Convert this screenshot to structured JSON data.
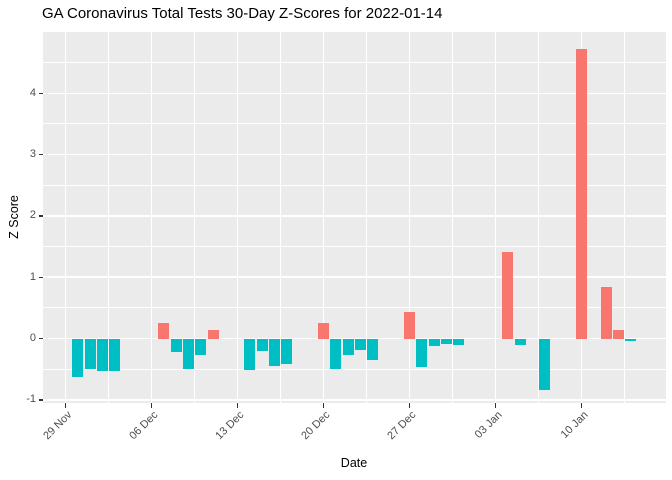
{
  "page": {
    "title": "GA Coronavirus Total Tests 30-Day Z-Scores for 2022-01-14"
  },
  "chart_data": {
    "type": "bar",
    "title": "GA Coronavirus Total Tests 30-Day Z-Scores for 2022-01-14",
    "xlabel": "Date",
    "ylabel": "Z Score",
    "x_start_date": "2021-11-29",
    "x_ticks": [
      {
        "date": "2021-11-29",
        "label": "29 Nov"
      },
      {
        "date": "2021-12-06",
        "label": "06 Dec"
      },
      {
        "date": "2021-12-13",
        "label": "13 Dec"
      },
      {
        "date": "2021-12-20",
        "label": "20 Dec"
      },
      {
        "date": "2021-12-27",
        "label": "27 Dec"
      },
      {
        "date": "2022-01-03",
        "label": "03 Jan"
      },
      {
        "date": "2022-01-10",
        "label": "10 Jan"
      }
    ],
    "y_ticks": [
      -1,
      0,
      1,
      2,
      3,
      4
    ],
    "ylim": [
      -1.05,
      5.0
    ],
    "grid": true,
    "legend": false,
    "series": [
      {
        "name": "z_score",
        "points": [
          {
            "date": "2021-11-30",
            "value": -0.62
          },
          {
            "date": "2021-12-01",
            "value": -0.49
          },
          {
            "date": "2021-12-02",
            "value": -0.53
          },
          {
            "date": "2021-12-03",
            "value": -0.53
          },
          {
            "date": "2021-12-07",
            "value": 0.26
          },
          {
            "date": "2021-12-08",
            "value": -0.22
          },
          {
            "date": "2021-12-09",
            "value": -0.5
          },
          {
            "date": "2021-12-10",
            "value": -0.27
          },
          {
            "date": "2021-12-11",
            "value": 0.14
          },
          {
            "date": "2021-12-14",
            "value": -0.52
          },
          {
            "date": "2021-12-15",
            "value": -0.21
          },
          {
            "date": "2021-12-16",
            "value": -0.44
          },
          {
            "date": "2021-12-17",
            "value": -0.41
          },
          {
            "date": "2021-12-20",
            "value": 0.25
          },
          {
            "date": "2021-12-21",
            "value": -0.49
          },
          {
            "date": "2021-12-22",
            "value": -0.26
          },
          {
            "date": "2021-12-23",
            "value": -0.18
          },
          {
            "date": "2021-12-24",
            "value": -0.35
          },
          {
            "date": "2021-12-27",
            "value": 0.43
          },
          {
            "date": "2021-12-28",
            "value": -0.47
          },
          {
            "date": "2021-12-29",
            "value": -0.12
          },
          {
            "date": "2021-12-30",
            "value": -0.08
          },
          {
            "date": "2021-12-31",
            "value": -0.11
          },
          {
            "date": "2022-01-04",
            "value": 1.41
          },
          {
            "date": "2022-01-05",
            "value": -0.1
          },
          {
            "date": "2022-01-07",
            "value": -0.83
          },
          {
            "date": "2022-01-10",
            "value": 4.72
          },
          {
            "date": "2022-01-12",
            "value": 0.84
          },
          {
            "date": "2022-01-13",
            "value": 0.14
          },
          {
            "date": "2022-01-14",
            "value": -0.04
          }
        ]
      }
    ],
    "colors": {
      "positive": "#F8766D",
      "negative": "#00BFC4",
      "panel_background": "#EBEBEB",
      "gridline": "#FFFFFF",
      "tick_text": "#4D4D4D",
      "axis_text": "#000000"
    }
  }
}
